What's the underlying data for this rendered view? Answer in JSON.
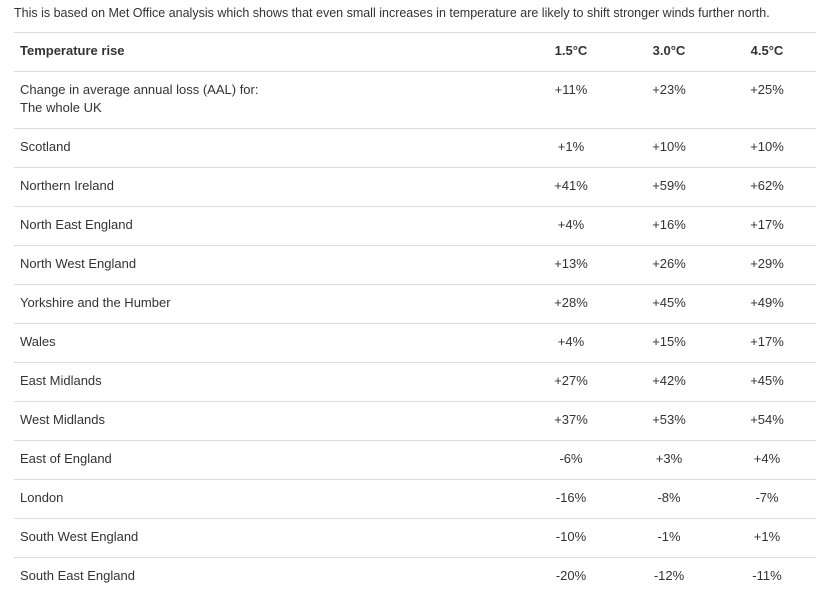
{
  "intro": "This is based on Met Office analysis which shows that even small increases in temperature are likely to shift stronger winds further north.",
  "table": {
    "header": [
      "Temperature rise",
      "1.5°C",
      "3.0°C",
      "4.5°C"
    ],
    "rows": [
      [
        [
          "Change in average annual loss (AAL) for:",
          "The whole UK"
        ],
        "+11%",
        "+23%",
        "+25%"
      ],
      [
        "Scotland",
        "+1%",
        "+10%",
        "+10%"
      ],
      [
        "Northern Ireland",
        "+41%",
        "+59%",
        "+62%"
      ],
      [
        "North East England",
        "+4%",
        "+16%",
        "+17%"
      ],
      [
        "North West England",
        "+13%",
        "+26%",
        "+29%"
      ],
      [
        "Yorkshire and the Humber",
        "+28%",
        "+45%",
        "+49%"
      ],
      [
        "Wales",
        "+4%",
        "+15%",
        "+17%"
      ],
      [
        "East Midlands",
        "+27%",
        "+42%",
        "+45%"
      ],
      [
        "West Midlands",
        "+37%",
        "+53%",
        "+54%"
      ],
      [
        "East of England",
        "-6%",
        "+3%",
        "+4%"
      ],
      [
        "London",
        "-16%",
        "-8%",
        "-7%"
      ],
      [
        "South West England",
        "-10%",
        "-1%",
        "+1%"
      ],
      [
        "South East England",
        "-20%",
        "-12%",
        "-11%"
      ]
    ]
  }
}
